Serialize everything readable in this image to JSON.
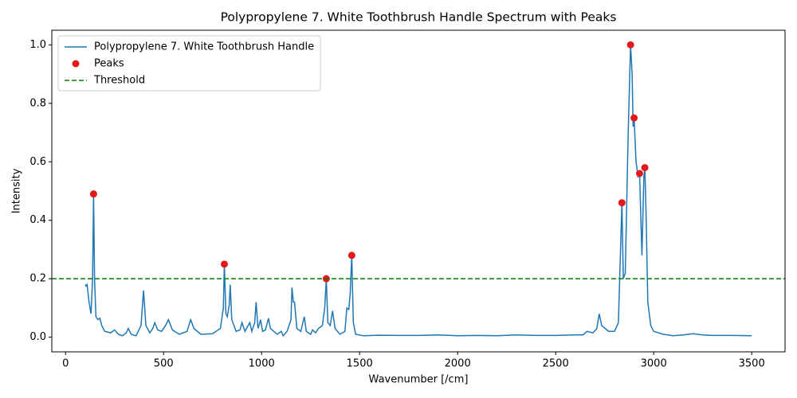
{
  "chart_data": {
    "type": "line",
    "title": "Polypropylene 7. White Toothbrush Handle Spectrum with Peaks",
    "x_label": "Wavenumber [/cm]",
    "y_label": "Intensity",
    "xlim": [
      -70,
      3670
    ],
    "ylim": [
      -0.05,
      1.05
    ],
    "xticks": [
      0,
      500,
      1000,
      1500,
      2000,
      2500,
      3000,
      3500
    ],
    "yticks": [
      {
        "value": 0,
        "label": "0.0"
      },
      0.2,
      0.4,
      0.6,
      0.8,
      {
        "value": 1,
        "label": "1.0"
      }
    ],
    "grid": false,
    "legend": "upper left",
    "series": [
      {
        "name": "Polypropylene 7. White Toothbrush Handle",
        "type": "line",
        "color": "#1f77b4",
        "x": [
          100,
          105,
          110,
          120,
          130,
          138,
          143,
          148,
          155,
          165,
          175,
          185,
          200,
          230,
          250,
          270,
          290,
          310,
          320,
          335,
          360,
          385,
          398,
          410,
          430,
          445,
          455,
          470,
          490,
          510,
          525,
          545,
          580,
          620,
          638,
          655,
          690,
          750,
          790,
          805,
          810,
          818,
          825,
          835,
          840,
          848,
          870,
          890,
          900,
          915,
          940,
          950,
          965,
          972,
          982,
          995,
          1005,
          1020,
          1035,
          1045,
          1080,
          1100,
          1110,
          1130,
          1150,
          1155,
          1162,
          1168,
          1180,
          1200,
          1218,
          1228,
          1250,
          1260,
          1275,
          1290,
          1310,
          1322,
          1330,
          1338,
          1350,
          1362,
          1375,
          1400,
          1425,
          1435,
          1445,
          1452,
          1460,
          1468,
          1480,
          1520,
          1600,
          1700,
          1800,
          1900,
          2000,
          2100,
          2200,
          2300,
          2400,
          2500,
          2600,
          2640,
          2660,
          2690,
          2710,
          2722,
          2735,
          2770,
          2800,
          2820,
          2838,
          2845,
          2855,
          2870,
          2882,
          2890,
          2895,
          2900,
          2910,
          2920,
          2928,
          2940,
          2950,
          2955,
          2962,
          2970,
          2985,
          3000,
          3050,
          3100,
          3150,
          3200,
          3250,
          3300,
          3400,
          3500
        ],
        "values": [
          0.18,
          0.175,
          0.18,
          0.12,
          0.08,
          0.2,
          0.49,
          0.2,
          0.07,
          0.06,
          0.065,
          0.04,
          0.02,
          0.015,
          0.025,
          0.01,
          0.005,
          0.015,
          0.03,
          0.01,
          0.005,
          0.04,
          0.16,
          0.04,
          0.015,
          0.03,
          0.05,
          0.025,
          0.02,
          0.04,
          0.06,
          0.025,
          0.01,
          0.02,
          0.06,
          0.03,
          0.01,
          0.012,
          0.03,
          0.1,
          0.25,
          0.08,
          0.07,
          0.11,
          0.18,
          0.06,
          0.02,
          0.025,
          0.05,
          0.02,
          0.05,
          0.02,
          0.05,
          0.12,
          0.03,
          0.06,
          0.02,
          0.025,
          0.065,
          0.03,
          0.01,
          0.02,
          0.005,
          0.02,
          0.06,
          0.17,
          0.12,
          0.12,
          0.03,
          0.02,
          0.07,
          0.02,
          0.01,
          0.025,
          0.015,
          0.03,
          0.04,
          0.1,
          0.2,
          0.05,
          0.04,
          0.09,
          0.03,
          0.01,
          0.02,
          0.1,
          0.095,
          0.15,
          0.28,
          0.05,
          0.01,
          0.005,
          0.007,
          0.006,
          0.006,
          0.008,
          0.005,
          0.006,
          0.005,
          0.008,
          0.006,
          0.006,
          0.008,
          0.008,
          0.02,
          0.015,
          0.03,
          0.08,
          0.04,
          0.02,
          0.02,
          0.05,
          0.46,
          0.2,
          0.22,
          0.7,
          1.0,
          0.9,
          0.72,
          0.75,
          0.6,
          0.55,
          0.56,
          0.28,
          0.55,
          0.58,
          0.4,
          0.12,
          0.04,
          0.02,
          0.01,
          0.005,
          0.008,
          0.012,
          0.008,
          0.006,
          0.006,
          0.005
        ]
      },
      {
        "name": "Peaks",
        "type": "scatter",
        "color": "#e31a1c",
        "x": [
          143,
          810,
          1330,
          1460,
          2838,
          2882,
          2900,
          2928,
          2955
        ],
        "values": [
          0.49,
          0.25,
          0.2,
          0.28,
          0.46,
          1.0,
          0.75,
          0.56,
          0.58
        ]
      }
    ],
    "hlines": [
      {
        "name": "Threshold",
        "value": 0.2,
        "color": "green",
        "style": "dashed"
      }
    ]
  }
}
